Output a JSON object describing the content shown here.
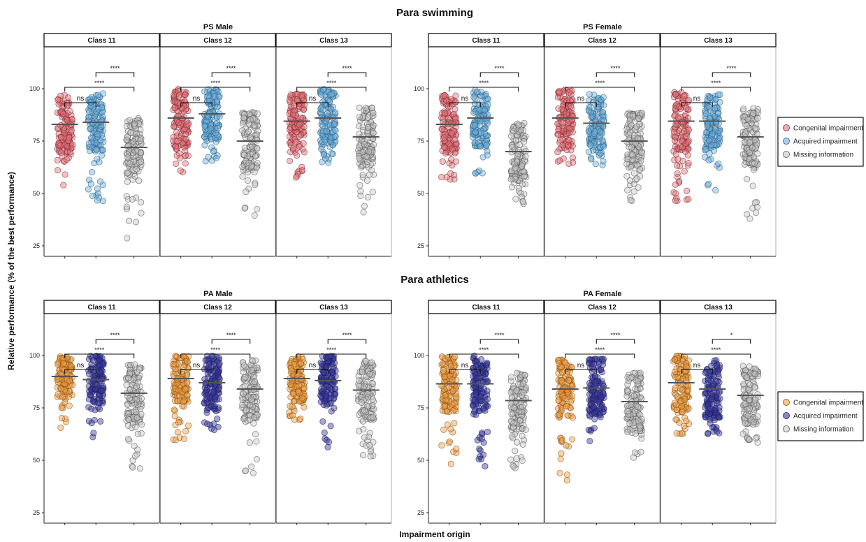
{
  "title_top": "Para swimming",
  "title_bottom": "Para athletics",
  "ylabel": "Relative performance (% of the best performance)",
  "xlabel": "Impairment origin",
  "legend_swimming": [
    {
      "label": "Congenital impairment",
      "color": "#e8747c"
    },
    {
      "label": "Acquired impairment",
      "color": "#6fb1dc"
    },
    {
      "label": "Missing information",
      "color": "#c8c8c8"
    }
  ],
  "legend_athletics": [
    {
      "label": "Congenital impairment",
      "color": "#f0a048"
    },
    {
      "label": "Acquired impairment",
      "color": "#3a3a9a"
    },
    {
      "label": "Missing information",
      "color": "#c8c8c8"
    }
  ],
  "chart_data": [
    {
      "type": "scatter",
      "group": "PS Male",
      "section": "Para swimming",
      "yticks": [
        25,
        50,
        75,
        100
      ],
      "ylim": [
        20,
        120
      ],
      "panels": [
        {
          "label": "Class 11",
          "medians": [
            83,
            84,
            72
          ],
          "ranges": [
            [
              53,
              100
            ],
            [
              46,
              100
            ],
            [
              28,
              98
            ]
          ],
          "sig": [
            "ns",
            "****",
            "****"
          ]
        },
        {
          "label": "Class 12",
          "medians": [
            86,
            88,
            75
          ],
          "ranges": [
            [
              60,
              100
            ],
            [
              65,
              100
            ],
            [
              39,
              100
            ]
          ],
          "sig": [
            "ns",
            "****",
            "****"
          ]
        },
        {
          "label": "Class 13",
          "medians": [
            84.5,
            86,
            77
          ],
          "ranges": [
            [
              55,
              98
            ],
            [
              64,
              100
            ],
            [
              39,
              100
            ]
          ],
          "sig": [
            "ns",
            "****",
            "****"
          ]
        }
      ]
    },
    {
      "type": "scatter",
      "group": "PS Female",
      "section": "Para swimming",
      "yticks": [
        25,
        50,
        75,
        100
      ],
      "ylim": [
        20,
        120
      ],
      "panels": [
        {
          "label": "Class 11",
          "medians": [
            83,
            86,
            70
          ],
          "ranges": [
            [
              55,
              100
            ],
            [
              59,
              100
            ],
            [
              45,
              95
            ]
          ],
          "sig": [
            "ns",
            "****",
            "****"
          ]
        },
        {
          "label": "Class 12",
          "medians": [
            86,
            83.5,
            75
          ],
          "ranges": [
            [
              64,
              100
            ],
            [
              63,
              100
            ],
            [
              45,
              98
            ]
          ],
          "sig": [
            "ns",
            "****",
            "****"
          ]
        },
        {
          "label": "Class 13",
          "medians": [
            84.5,
            84.5,
            77
          ],
          "ranges": [
            [
              46,
              100
            ],
            [
              51,
              100
            ],
            [
              37,
              100
            ]
          ],
          "sig": [
            "ns",
            "****",
            "****"
          ]
        }
      ]
    },
    {
      "type": "scatter",
      "group": "PA Male",
      "section": "Para athletics",
      "yticks": [
        25,
        50,
        75,
        100
      ],
      "ylim": [
        20,
        120
      ],
      "panels": [
        {
          "label": "Class 11",
          "medians": [
            90,
            88.5,
            82
          ],
          "ranges": [
            [
              64,
              100
            ],
            [
              61,
              100
            ],
            [
              45,
              97
            ]
          ],
          "sig": [
            "ns",
            "****",
            "****"
          ]
        },
        {
          "label": "Class 12",
          "medians": [
            89,
            87,
            84
          ],
          "ranges": [
            [
              59,
              100
            ],
            [
              63,
              100
            ],
            [
              43,
              100
            ]
          ],
          "sig": [
            "ns",
            "****",
            "****"
          ]
        },
        {
          "label": "Class 13",
          "medians": [
            89,
            88,
            83.5
          ],
          "ranges": [
            [
              69,
              100
            ],
            [
              56,
              100
            ],
            [
              51,
              100
            ]
          ],
          "sig": [
            "ns",
            "****",
            "****"
          ]
        }
      ]
    },
    {
      "type": "scatter",
      "group": "PA Female",
      "section": "Para athletics",
      "yticks": [
        25,
        50,
        75,
        100
      ],
      "ylim": [
        20,
        120
      ],
      "panels": [
        {
          "label": "Class 11",
          "medians": [
            86.5,
            86.5,
            78.5
          ],
          "ranges": [
            [
              48,
              100
            ],
            [
              47,
              100
            ],
            [
              46,
              100
            ]
          ],
          "sig": [
            "ns",
            "****",
            "****"
          ]
        },
        {
          "label": "Class 12",
          "medians": [
            84,
            84.5,
            78
          ],
          "ranges": [
            [
              40,
              100
            ],
            [
              58,
              100
            ],
            [
              50,
              97
            ]
          ],
          "sig": [
            "ns",
            "****",
            "****"
          ]
        },
        {
          "label": "Class 13",
          "medians": [
            87,
            84,
            81
          ],
          "ranges": [
            [
              62,
              100
            ],
            [
              60,
              100
            ],
            [
              58,
              97
            ]
          ],
          "sig": [
            "ns",
            "****",
            "*"
          ]
        }
      ]
    }
  ]
}
